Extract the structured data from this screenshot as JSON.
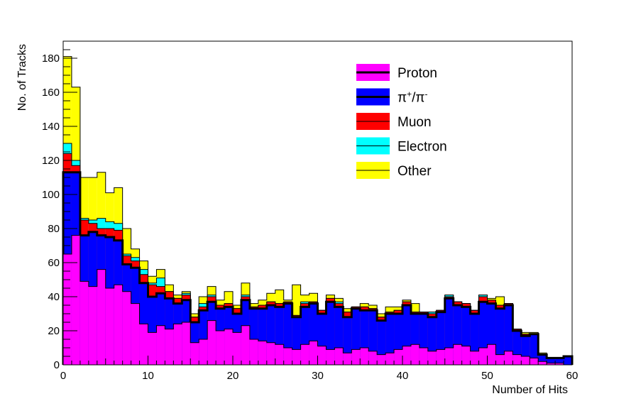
{
  "chart_data": {
    "type": "bar",
    "stacked": true,
    "histogram": true,
    "xlabel": "Number of Hits",
    "ylabel": "No. of Tracks",
    "xlim": [
      0,
      60
    ],
    "ylim": [
      0,
      190
    ],
    "bin_width": 1,
    "xticks": [
      0,
      10,
      20,
      30,
      40,
      50,
      60
    ],
    "yticks": [
      0,
      20,
      40,
      60,
      80,
      100,
      120,
      140,
      160,
      180
    ],
    "grid": false,
    "legend_position": "top-right",
    "x": [
      0,
      1,
      2,
      3,
      4,
      5,
      6,
      7,
      8,
      9,
      10,
      11,
      12,
      13,
      14,
      15,
      16,
      17,
      18,
      19,
      20,
      21,
      22,
      23,
      24,
      25,
      26,
      27,
      28,
      29,
      30,
      31,
      32,
      33,
      34,
      35,
      36,
      37,
      38,
      39,
      40,
      41,
      42,
      43,
      44,
      45,
      46,
      47,
      48,
      49,
      50,
      51,
      52,
      53,
      54,
      55,
      56,
      57,
      58,
      59
    ],
    "series": [
      {
        "name": "Proton",
        "label_plain": "Proton",
        "color": "#ff00ff",
        "border_color": "#000000",
        "values": [
          65,
          76,
          49,
          46,
          56,
          45,
          47,
          43,
          36,
          24,
          19,
          23,
          21,
          24,
          25,
          13,
          15,
          26,
          20,
          21,
          19,
          23,
          15,
          14,
          13,
          12,
          10,
          9,
          12,
          14,
          11,
          9,
          10,
          7,
          9,
          10,
          8,
          6,
          7,
          9,
          11,
          12,
          10,
          8,
          9,
          10,
          12,
          11,
          8,
          10,
          12,
          6,
          8,
          6,
          5,
          4,
          2,
          1,
          1,
          0
        ]
      },
      {
        "name": "π+/π-",
        "label_plain": "π",
        "label_sup1": "+",
        "label_sep": "/π",
        "label_sup2": "-",
        "color": "#0000ff",
        "border_color": "#000000",
        "values": [
          48,
          37,
          27,
          32,
          20,
          30,
          26,
          16,
          21,
          24,
          21,
          19,
          18,
          12,
          13,
          12,
          17,
          11,
          13,
          13,
          11,
          15,
          18,
          19,
          22,
          22,
          26,
          19,
          22,
          22,
          19,
          28,
          24,
          21,
          24,
          22,
          24,
          20,
          23,
          21,
          24,
          18,
          20,
          20,
          22,
          29,
          23,
          23,
          22,
          27,
          24,
          27,
          27,
          14,
          12,
          14,
          4,
          3,
          3,
          5
        ]
      },
      {
        "name": "Muon",
        "label_plain": "Muon",
        "color": "#ff0000",
        "border_color": "#000000",
        "values": [
          11,
          4,
          9,
          5,
          4,
          5,
          6,
          5,
          4,
          5,
          7,
          4,
          4,
          3,
          3,
          3,
          2,
          3,
          2,
          2,
          3,
          2,
          1,
          2,
          2,
          2,
          1,
          1,
          2,
          1,
          2,
          2,
          2,
          3,
          1,
          2,
          1,
          2,
          1,
          2,
          2,
          1,
          1,
          2,
          1,
          1,
          2,
          2,
          2,
          3,
          2,
          2,
          1,
          1,
          1,
          0,
          0,
          0,
          0,
          0
        ]
      },
      {
        "name": "Electron",
        "label_plain": "Electron",
        "color": "#00ffff",
        "border_color": "#000000",
        "values": [
          6,
          3,
          1,
          2,
          6,
          4,
          4,
          1,
          2,
          3,
          1,
          5,
          0,
          0,
          1,
          0,
          2,
          1,
          0,
          0,
          0,
          1,
          0,
          0,
          0,
          0,
          0,
          0,
          1,
          0,
          0,
          0,
          1,
          0,
          0,
          0,
          0,
          0,
          0,
          0,
          0,
          0,
          0,
          1,
          0,
          1,
          0,
          0,
          0,
          1,
          0,
          0,
          0,
          0,
          0,
          0,
          0,
          0,
          0,
          0
        ]
      },
      {
        "name": "Other",
        "label_plain": "Other",
        "color": "#ffff00",
        "border_color": "#000000",
        "values": [
          51,
          43,
          24,
          25,
          27,
          17,
          21,
          15,
          5,
          5,
          4,
          5,
          4,
          2,
          1,
          2,
          4,
          5,
          3,
          7,
          2,
          7,
          2,
          3,
          5,
          8,
          1,
          18,
          4,
          5,
          0,
          2,
          2,
          2,
          0,
          2,
          2,
          2,
          3,
          2,
          1,
          5,
          0,
          0,
          0,
          0,
          0,
          0,
          0,
          0,
          1,
          5,
          0,
          0,
          1,
          1,
          1,
          0,
          0,
          0
        ]
      }
    ]
  }
}
